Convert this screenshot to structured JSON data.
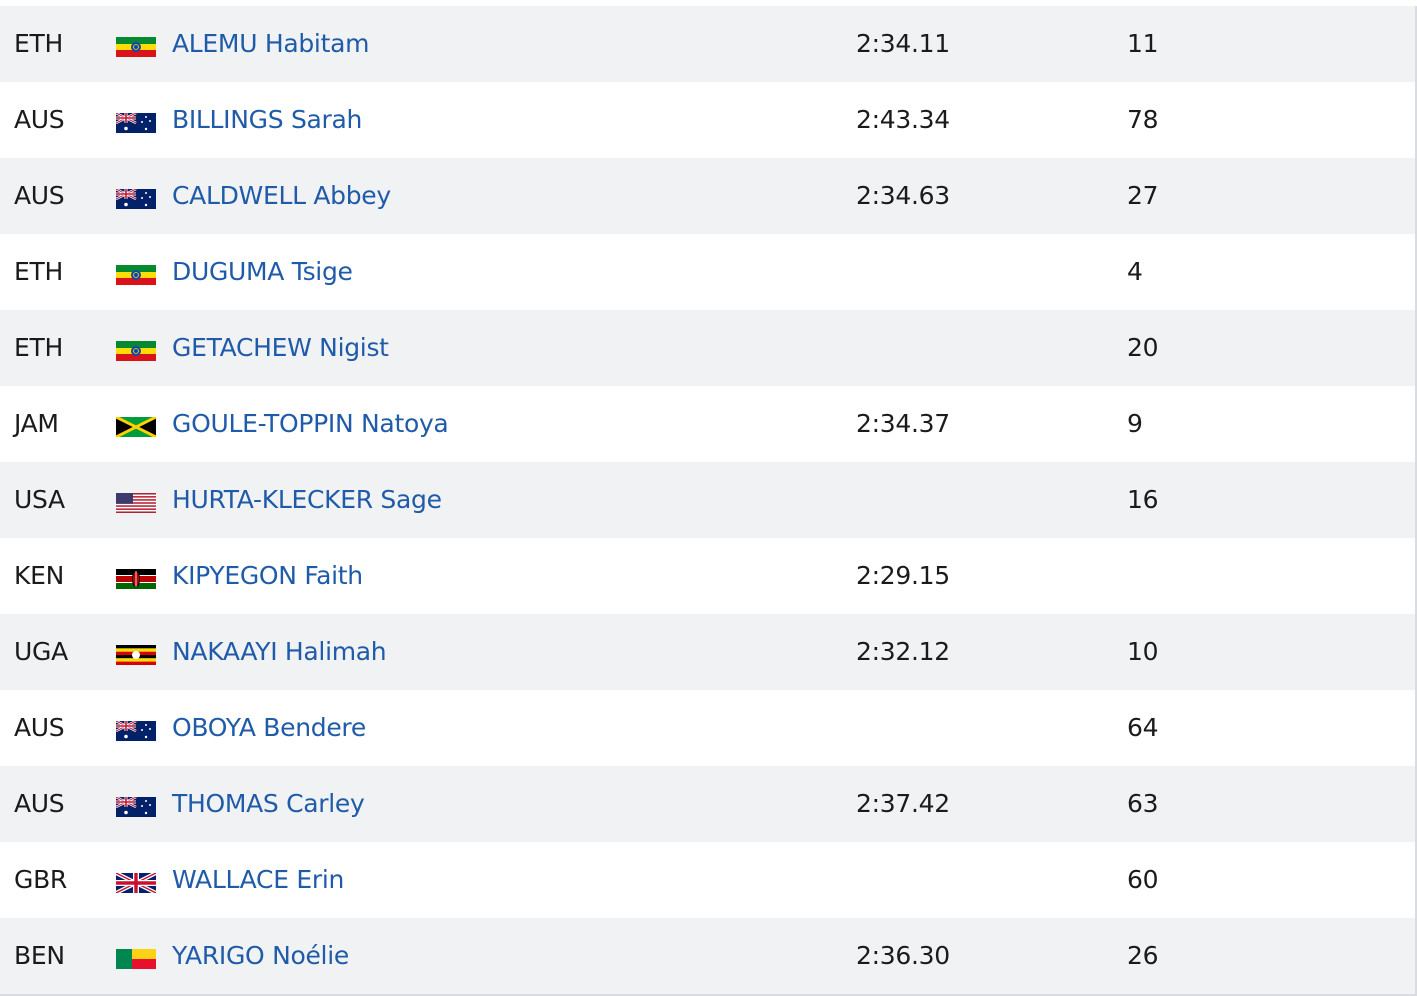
{
  "table": {
    "rows": [
      [
        "ETH",
        "ALEMU Habitam",
        "2:34.11",
        11
      ],
      [
        "AUS",
        "BILLINGS Sarah",
        "2:43.34",
        78
      ],
      [
        "AUS",
        "CALDWELL Abbey",
        "2:34.63",
        27
      ],
      [
        "ETH",
        "DUGUMA Tsige",
        null,
        4
      ],
      [
        "ETH",
        "GETACHEW Nigist",
        null,
        20
      ],
      [
        "JAM",
        "GOULE-TOPPIN Natoya",
        "2:34.37",
        9
      ],
      [
        "USA",
        "HURTA-KLECKER Sage",
        null,
        16
      ],
      [
        "KEN",
        "KIPYEGON Faith",
        "2:29.15",
        null
      ],
      [
        "UGA",
        "NAKAAYI Halimah",
        "2:32.12",
        10
      ],
      [
        "AUS",
        "OBOYA Bendere",
        null,
        64
      ],
      [
        "AUS",
        "THOMAS Carley",
        "2:37.42",
        63
      ],
      [
        "GBR",
        "WALLACE Erin",
        null,
        60
      ],
      [
        "BEN",
        "YARIGO Noélie",
        "2:36.30",
        26
      ]
    ]
  }
}
